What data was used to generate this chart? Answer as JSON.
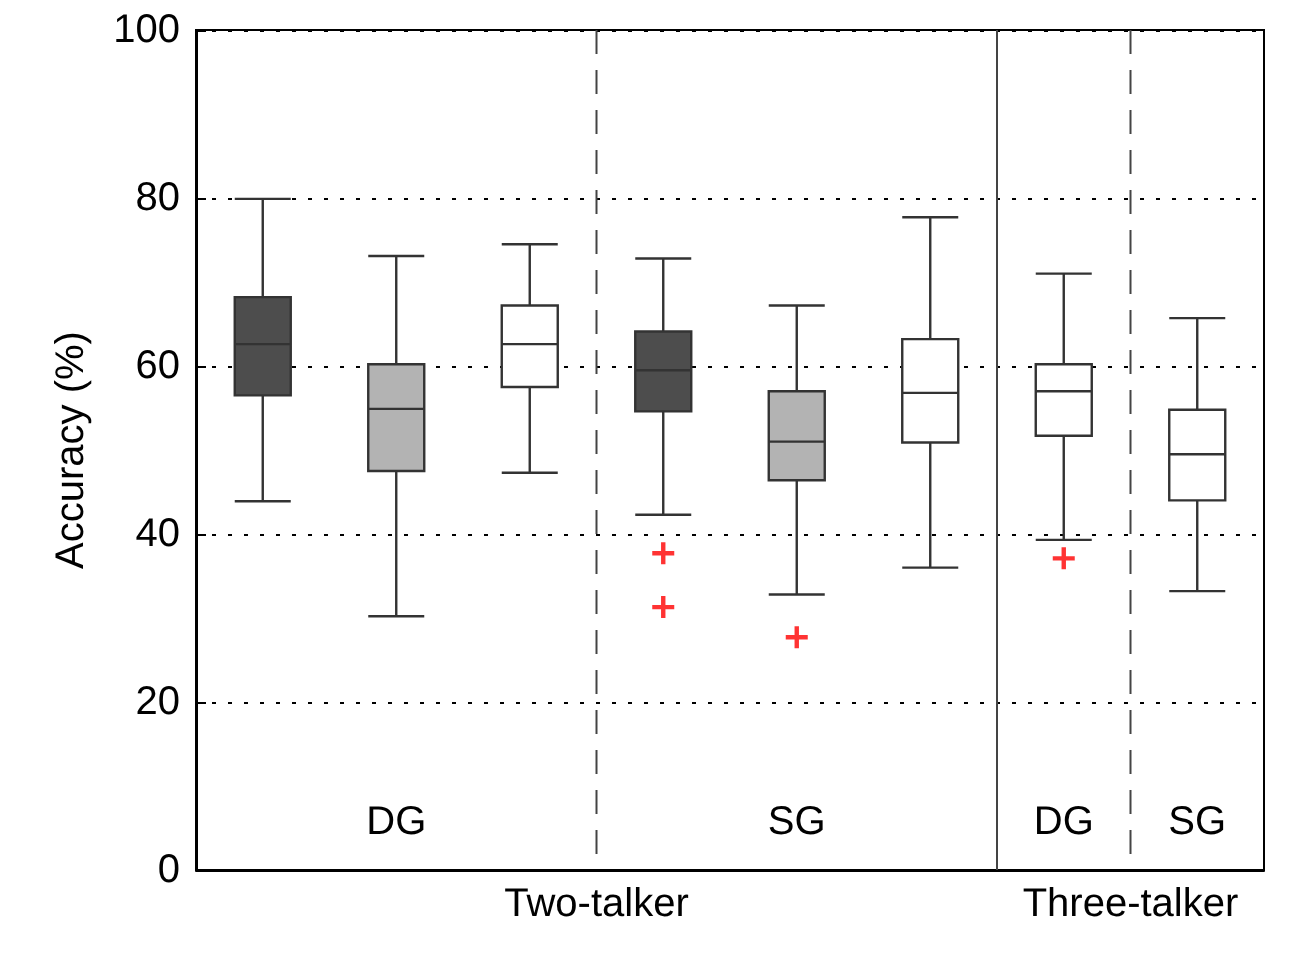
{
  "chart_data": {
    "type": "box",
    "ylabel": "Accuracy (%)",
    "categories": [
      null,
      "DG",
      null,
      null,
      "SG",
      null,
      "DG",
      "SG"
    ],
    "series": [
      {
        "color": "#4d4d4d",
        "boxes": [
          {
            "low": 43.9,
            "q1": 56.5,
            "median": 62.6,
            "q3": 68.2,
            "high": 79.9
          },
          null,
          null,
          {
            "low": 42.3,
            "q1": 54.6,
            "median": 59.5,
            "q3": 64.1,
            "high": 72.8,
            "outliers": [
              37.7,
              31.3
            ]
          },
          null,
          null,
          null,
          null
        ]
      },
      {
        "color": "#b3b3b3",
        "boxes": [
          null,
          {
            "low": 30.2,
            "q1": 47.5,
            "median": 54.9,
            "q3": 60.2,
            "high": 73.1
          },
          null,
          null,
          {
            "low": 32.8,
            "q1": 46.4,
            "median": 51,
            "q3": 57,
            "high": 67.2,
            "outliers": [
              27.7
            ]
          },
          null,
          null,
          null
        ]
      },
      {
        "color": "#ffffff",
        "boxes": [
          null,
          null,
          {
            "low": 47.3,
            "q1": 57.5,
            "median": 62.6,
            "q3": 67.2,
            "high": 74.5
          },
          null,
          null,
          {
            "low": 36,
            "q1": 50.9,
            "median": 56.8,
            "q3": 63.2,
            "high": 77.7
          },
          {
            "low": 39.3,
            "q1": 51.7,
            "median": 57,
            "q3": 60.2,
            "high": 71,
            "outliers": [
              37.1
            ]
          },
          {
            "low": 33.2,
            "q1": 44,
            "median": 49.5,
            "q3": 54.8,
            "high": 65.7
          }
        ]
      }
    ],
    "ylim": [
      0,
      100
    ],
    "yticks": [
      0,
      20,
      40,
      60,
      80,
      100
    ],
    "grid": "y",
    "annotations": [
      "Two-talker",
      "Three-talker"
    ]
  }
}
